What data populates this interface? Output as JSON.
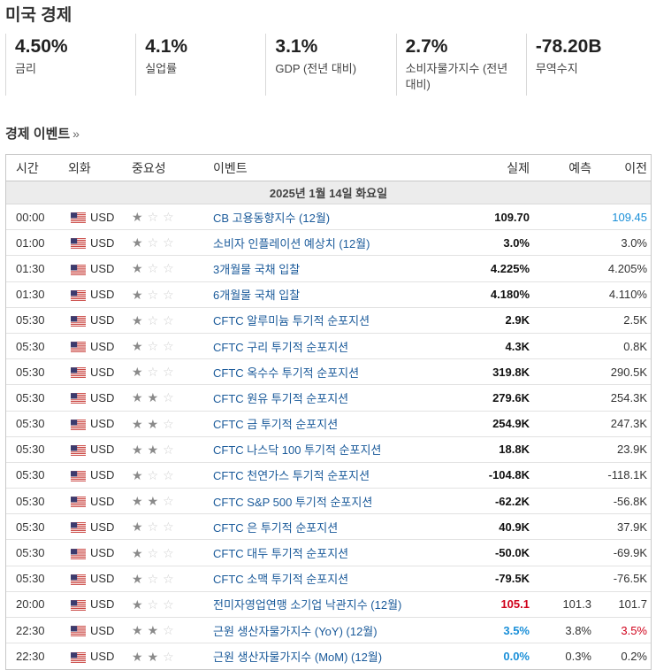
{
  "page_title": "미국 경제",
  "indicators": [
    {
      "value": "4.50%",
      "label": "금리"
    },
    {
      "value": "4.1%",
      "label": "실업률"
    },
    {
      "value": "3.1%",
      "label": "GDP (전년 대비)"
    },
    {
      "value": "2.7%",
      "label": "소비자물가지수 (전년 대비)"
    },
    {
      "value": "-78.20B",
      "label": "무역수지"
    }
  ],
  "events_section": {
    "title": "경제 이벤트",
    "chevron": "»"
  },
  "table": {
    "headers": {
      "time": "시간",
      "currency": "외화",
      "importance": "중요성",
      "event": "이벤트",
      "actual": "실제",
      "forecast": "예측",
      "previous": "이전"
    },
    "date": "2025년 1월 14일 화요일",
    "rows": [
      {
        "time": "00:00",
        "currency": "USD",
        "stars": 1,
        "event": "CB 고용동향지수 (12월)",
        "actual": "109.70",
        "forecast": "",
        "previous": "109.45",
        "actual_color": "",
        "previous_color": "blue"
      },
      {
        "time": "01:00",
        "currency": "USD",
        "stars": 1,
        "event": "소비자 인플레이션 예상치 (12월)",
        "actual": "3.0%",
        "forecast": "",
        "previous": "3.0%",
        "actual_color": "",
        "previous_color": ""
      },
      {
        "time": "01:30",
        "currency": "USD",
        "stars": 1,
        "event": "3개월물 국채 입찰",
        "actual": "4.225%",
        "forecast": "",
        "previous": "4.205%",
        "actual_color": "",
        "previous_color": ""
      },
      {
        "time": "01:30",
        "currency": "USD",
        "stars": 1,
        "event": "6개월물 국채 입찰",
        "actual": "4.180%",
        "forecast": "",
        "previous": "4.110%",
        "actual_color": "",
        "previous_color": ""
      },
      {
        "time": "05:30",
        "currency": "USD",
        "stars": 1,
        "event": "CFTC 알루미늄 투기적 순포지션",
        "actual": "2.9K",
        "forecast": "",
        "previous": "2.5K",
        "actual_color": "",
        "previous_color": ""
      },
      {
        "time": "05:30",
        "currency": "USD",
        "stars": 1,
        "event": "CFTC 구리 투기적 순포지션",
        "actual": "4.3K",
        "forecast": "",
        "previous": "0.8K",
        "actual_color": "",
        "previous_color": ""
      },
      {
        "time": "05:30",
        "currency": "USD",
        "stars": 1,
        "event": "CFTC 옥수수 투기적 순포지션",
        "actual": "319.8K",
        "forecast": "",
        "previous": "290.5K",
        "actual_color": "",
        "previous_color": ""
      },
      {
        "time": "05:30",
        "currency": "USD",
        "stars": 2,
        "event": "CFTC 원유 투기적 순포지션",
        "actual": "279.6K",
        "forecast": "",
        "previous": "254.3K",
        "actual_color": "",
        "previous_color": ""
      },
      {
        "time": "05:30",
        "currency": "USD",
        "stars": 2,
        "event": "CFTC 금 투기적 순포지션",
        "actual": "254.9K",
        "forecast": "",
        "previous": "247.3K",
        "actual_color": "",
        "previous_color": ""
      },
      {
        "time": "05:30",
        "currency": "USD",
        "stars": 2,
        "event": "CFTC 나스닥 100 투기적 순포지션",
        "actual": "18.8K",
        "forecast": "",
        "previous": "23.9K",
        "actual_color": "",
        "previous_color": ""
      },
      {
        "time": "05:30",
        "currency": "USD",
        "stars": 1,
        "event": "CFTC 천연가스 투기적 순포지션",
        "actual": "-104.8K",
        "forecast": "",
        "previous": "-118.1K",
        "actual_color": "",
        "previous_color": ""
      },
      {
        "time": "05:30",
        "currency": "USD",
        "stars": 2,
        "event": "CFTC S&P 500 투기적 순포지션",
        "actual": "-62.2K",
        "forecast": "",
        "previous": "-56.8K",
        "actual_color": "",
        "previous_color": ""
      },
      {
        "time": "05:30",
        "currency": "USD",
        "stars": 1,
        "event": "CFTC 은 투기적 순포지션",
        "actual": "40.9K",
        "forecast": "",
        "previous": "37.9K",
        "actual_color": "",
        "previous_color": ""
      },
      {
        "time": "05:30",
        "currency": "USD",
        "stars": 1,
        "event": "CFTC 대두 투기적 순포지션",
        "actual": "-50.0K",
        "forecast": "",
        "previous": "-69.9K",
        "actual_color": "",
        "previous_color": ""
      },
      {
        "time": "05:30",
        "currency": "USD",
        "stars": 1,
        "event": "CFTC 소맥 투기적 순포지션",
        "actual": "-79.5K",
        "forecast": "",
        "previous": "-76.5K",
        "actual_color": "",
        "previous_color": ""
      },
      {
        "time": "20:00",
        "currency": "USD",
        "stars": 1,
        "event": "전미자영업연맹 소기업 낙관지수 (12월)",
        "actual": "105.1",
        "forecast": "101.3",
        "previous": "101.7",
        "actual_color": "red",
        "previous_color": ""
      },
      {
        "time": "22:30",
        "currency": "USD",
        "stars": 2,
        "event": "근원 생산자물가지수 (YoY) (12월)",
        "actual": "3.5%",
        "forecast": "3.8%",
        "previous": "3.5%",
        "actual_color": "blue",
        "previous_color": "red"
      },
      {
        "time": "22:30",
        "currency": "USD",
        "stars": 2,
        "event": "근원 생산자물가지수 (MoM) (12월)",
        "actual": "0.0%",
        "forecast": "0.3%",
        "previous": "0.2%",
        "actual_color": "blue",
        "previous_color": ""
      }
    ]
  },
  "icons": {
    "flag": "us-flag-icon",
    "star": "star-icon"
  },
  "colors": {
    "link": "#1a5a9a",
    "positive": "#1a8fd8",
    "negative": "#d0021b",
    "star_on": "#8a8a8a",
    "star_off": "#cfcfcf"
  }
}
